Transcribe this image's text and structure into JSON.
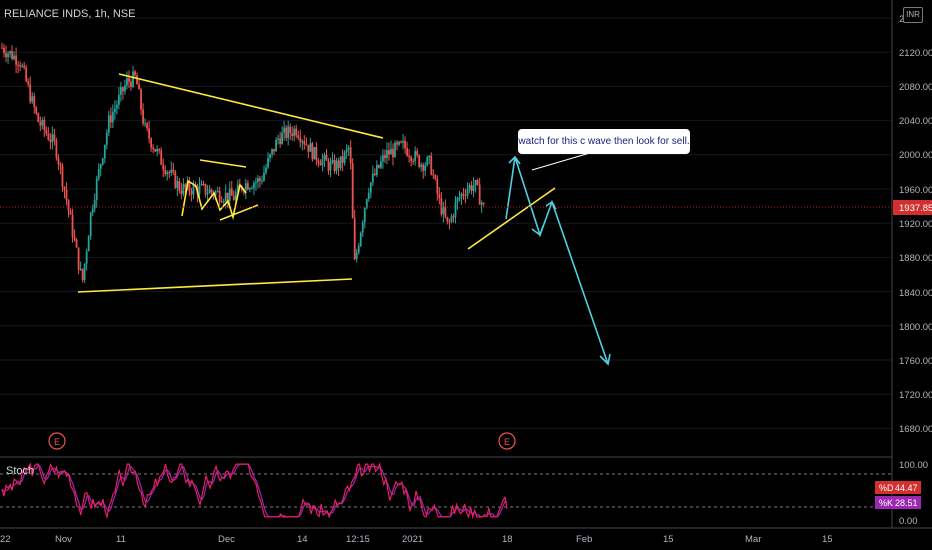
{
  "header": {
    "symbol_line": "RELIANCE INDS, 1h, NSE",
    "currency": "INR"
  },
  "annotations": {
    "callout": "watch for this c wave then look for sell.",
    "earnings_marker": "E"
  },
  "price_axis": {
    "ticks": [
      "2",
      "2120.00",
      "2080.00",
      "2040.00",
      "2000.00",
      "1960.00",
      "1920.00",
      "1880.00",
      "1840.00",
      "1800.00",
      "1760.00",
      "1720.00",
      "1680.00"
    ],
    "last_price": "1937.85"
  },
  "time_axis": {
    "ticks": [
      "22",
      "Nov",
      "11",
      "Dec",
      "14",
      "12:15",
      "2021",
      "18",
      "Feb",
      "15",
      "Mar",
      "15"
    ]
  },
  "stoch": {
    "label": "Stoch",
    "axis_ticks": [
      "100.00",
      "0.00"
    ],
    "d_label": "%D",
    "d_value": "44.47",
    "k_label": "%K",
    "k_value": "28.51"
  },
  "colors": {
    "background": "#000000",
    "up_candle": "#26a69a",
    "down_candle": "#ef5350",
    "trendline": "#ffeb3b",
    "projection": "#4dd0e1",
    "stoch_k": "#e91e63",
    "stoch_d": "#9c27b0",
    "last_price_line": "#b71c1c"
  },
  "chart_data": {
    "type": "candlestick",
    "ylim": [
      1640,
      2160
    ],
    "close_path": [
      [
        0,
        2125
      ],
      [
        0.02,
        2110
      ],
      [
        0.04,
        2040
      ],
      [
        0.06,
        2010
      ],
      [
        0.07,
        1960
      ],
      [
        0.09,
        1850
      ],
      [
        0.1,
        1935
      ],
      [
        0.12,
        2040
      ],
      [
        0.14,
        2085
      ],
      [
        0.15,
        2090
      ],
      [
        0.16,
        2030
      ],
      [
        0.18,
        1990
      ],
      [
        0.2,
        1960
      ],
      [
        0.22,
        1960
      ],
      [
        0.24,
        1955
      ],
      [
        0.26,
        1950
      ],
      [
        0.27,
        1965
      ],
      [
        0.29,
        1970
      ],
      [
        0.31,
        2020
      ],
      [
        0.33,
        2030
      ],
      [
        0.35,
        2000
      ],
      [
        0.37,
        1985
      ],
      [
        0.38,
        1990
      ],
      [
        0.39,
        2010
      ],
      [
        0.395,
        1870
      ],
      [
        0.41,
        1960
      ],
      [
        0.43,
        2000
      ],
      [
        0.45,
        2010
      ],
      [
        0.47,
        1990
      ],
      [
        0.48,
        1990
      ],
      [
        0.49,
        1945
      ],
      [
        0.5,
        1915
      ],
      [
        0.51,
        1945
      ],
      [
        0.52,
        1960
      ],
      [
        0.53,
        1965
      ],
      [
        0.54,
        1937.85
      ]
    ],
    "last_close": 1937.85
  }
}
